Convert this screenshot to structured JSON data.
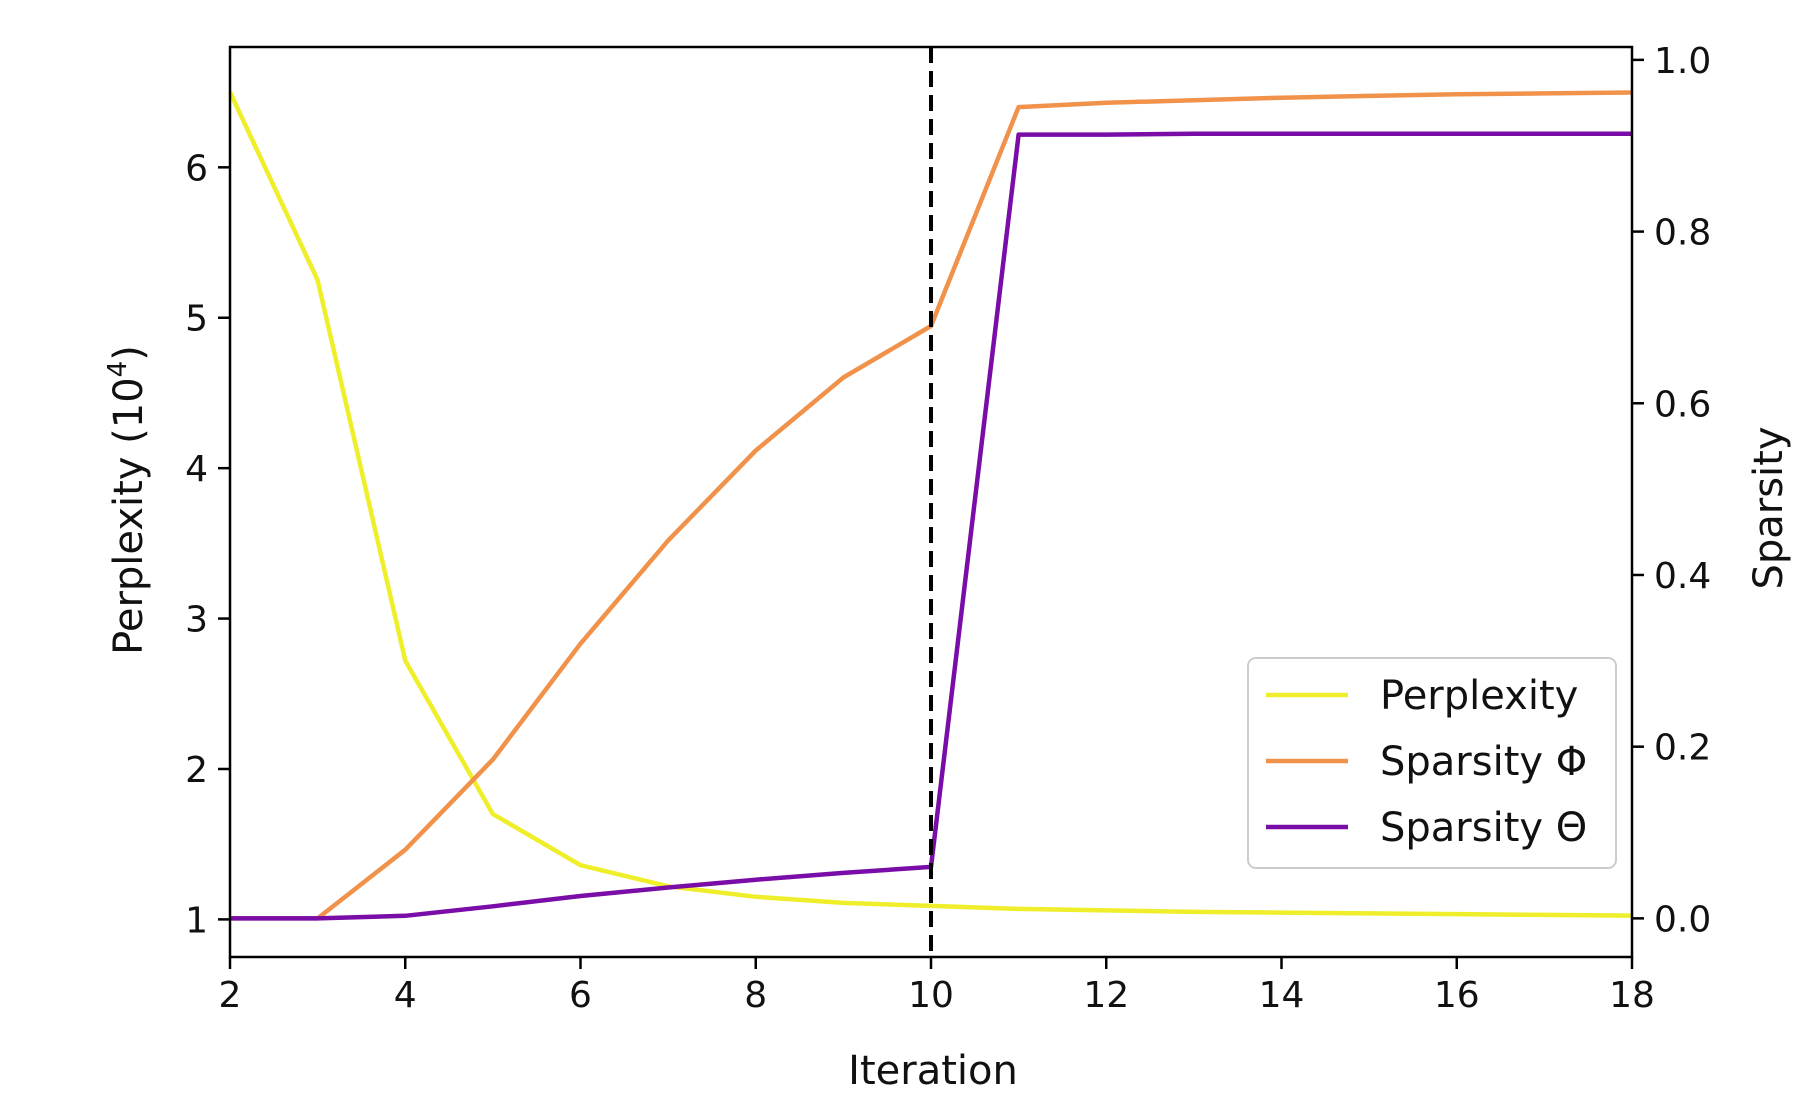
{
  "chart_data": {
    "type": "line",
    "xlabel": "Iteration",
    "ylabel_left_text": "Perplexity (10",
    "ylabel_left_exp": "4",
    "ylabel_left_close": ")",
    "ylabel_right": "Sparsity",
    "xlim": [
      2,
      18
    ],
    "ylim_left": [
      0.75,
      6.8
    ],
    "ylim_right": [
      -0.045,
      1.015
    ],
    "x_ticks": [
      2,
      4,
      6,
      8,
      10,
      12,
      14,
      16,
      18
    ],
    "x_tick_labels": [
      "2",
      "4",
      "6",
      "8",
      "10",
      "12",
      "14",
      "16",
      "18"
    ],
    "y_left_ticks": [
      1,
      2,
      3,
      4,
      5,
      6
    ],
    "y_left_tick_labels": [
      "1",
      "2",
      "3",
      "4",
      "5",
      "6"
    ],
    "y_right_ticks": [
      0.0,
      0.2,
      0.4,
      0.6,
      0.8,
      1.0
    ],
    "y_right_tick_labels": [
      "0.0",
      "0.2",
      "0.4",
      "0.6",
      "0.8",
      "1.0"
    ],
    "vline_x": 10,
    "grid": false,
    "legend_position": "lower-right",
    "series": [
      {
        "name": "Perplexity",
        "axis": "left",
        "color": "#eeee2a",
        "x": [
          2,
          3,
          4,
          5,
          6,
          7,
          8,
          9,
          10,
          11,
          12,
          13,
          14,
          15,
          16,
          17,
          18
        ],
        "values": [
          6.5,
          5.25,
          2.72,
          1.7,
          1.36,
          1.22,
          1.15,
          1.11,
          1.09,
          1.07,
          1.06,
          1.05,
          1.045,
          1.04,
          1.035,
          1.03,
          1.025
        ]
      },
      {
        "name": "Sparsity Φ",
        "axis": "right",
        "color": "#f0924a",
        "x": [
          2,
          3,
          4,
          5,
          6,
          7,
          8,
          9,
          10,
          11,
          12,
          13,
          14,
          15,
          16,
          17,
          18
        ],
        "values": [
          0.0,
          0.0,
          0.08,
          0.185,
          0.32,
          0.44,
          0.545,
          0.63,
          0.69,
          0.945,
          0.95,
          0.953,
          0.956,
          0.958,
          0.96,
          0.961,
          0.962
        ]
      },
      {
        "name": "Sparsity Θ",
        "axis": "right",
        "color": "#7a0ca8",
        "x": [
          2,
          3,
          4,
          5,
          6,
          7,
          8,
          9,
          10,
          11,
          12,
          13,
          14,
          15,
          16,
          17,
          18
        ],
        "values": [
          0.0,
          0.0,
          0.003,
          0.014,
          0.026,
          0.036,
          0.045,
          0.053,
          0.06,
          0.913,
          0.913,
          0.914,
          0.914,
          0.914,
          0.914,
          0.914,
          0.914
        ]
      }
    ]
  }
}
